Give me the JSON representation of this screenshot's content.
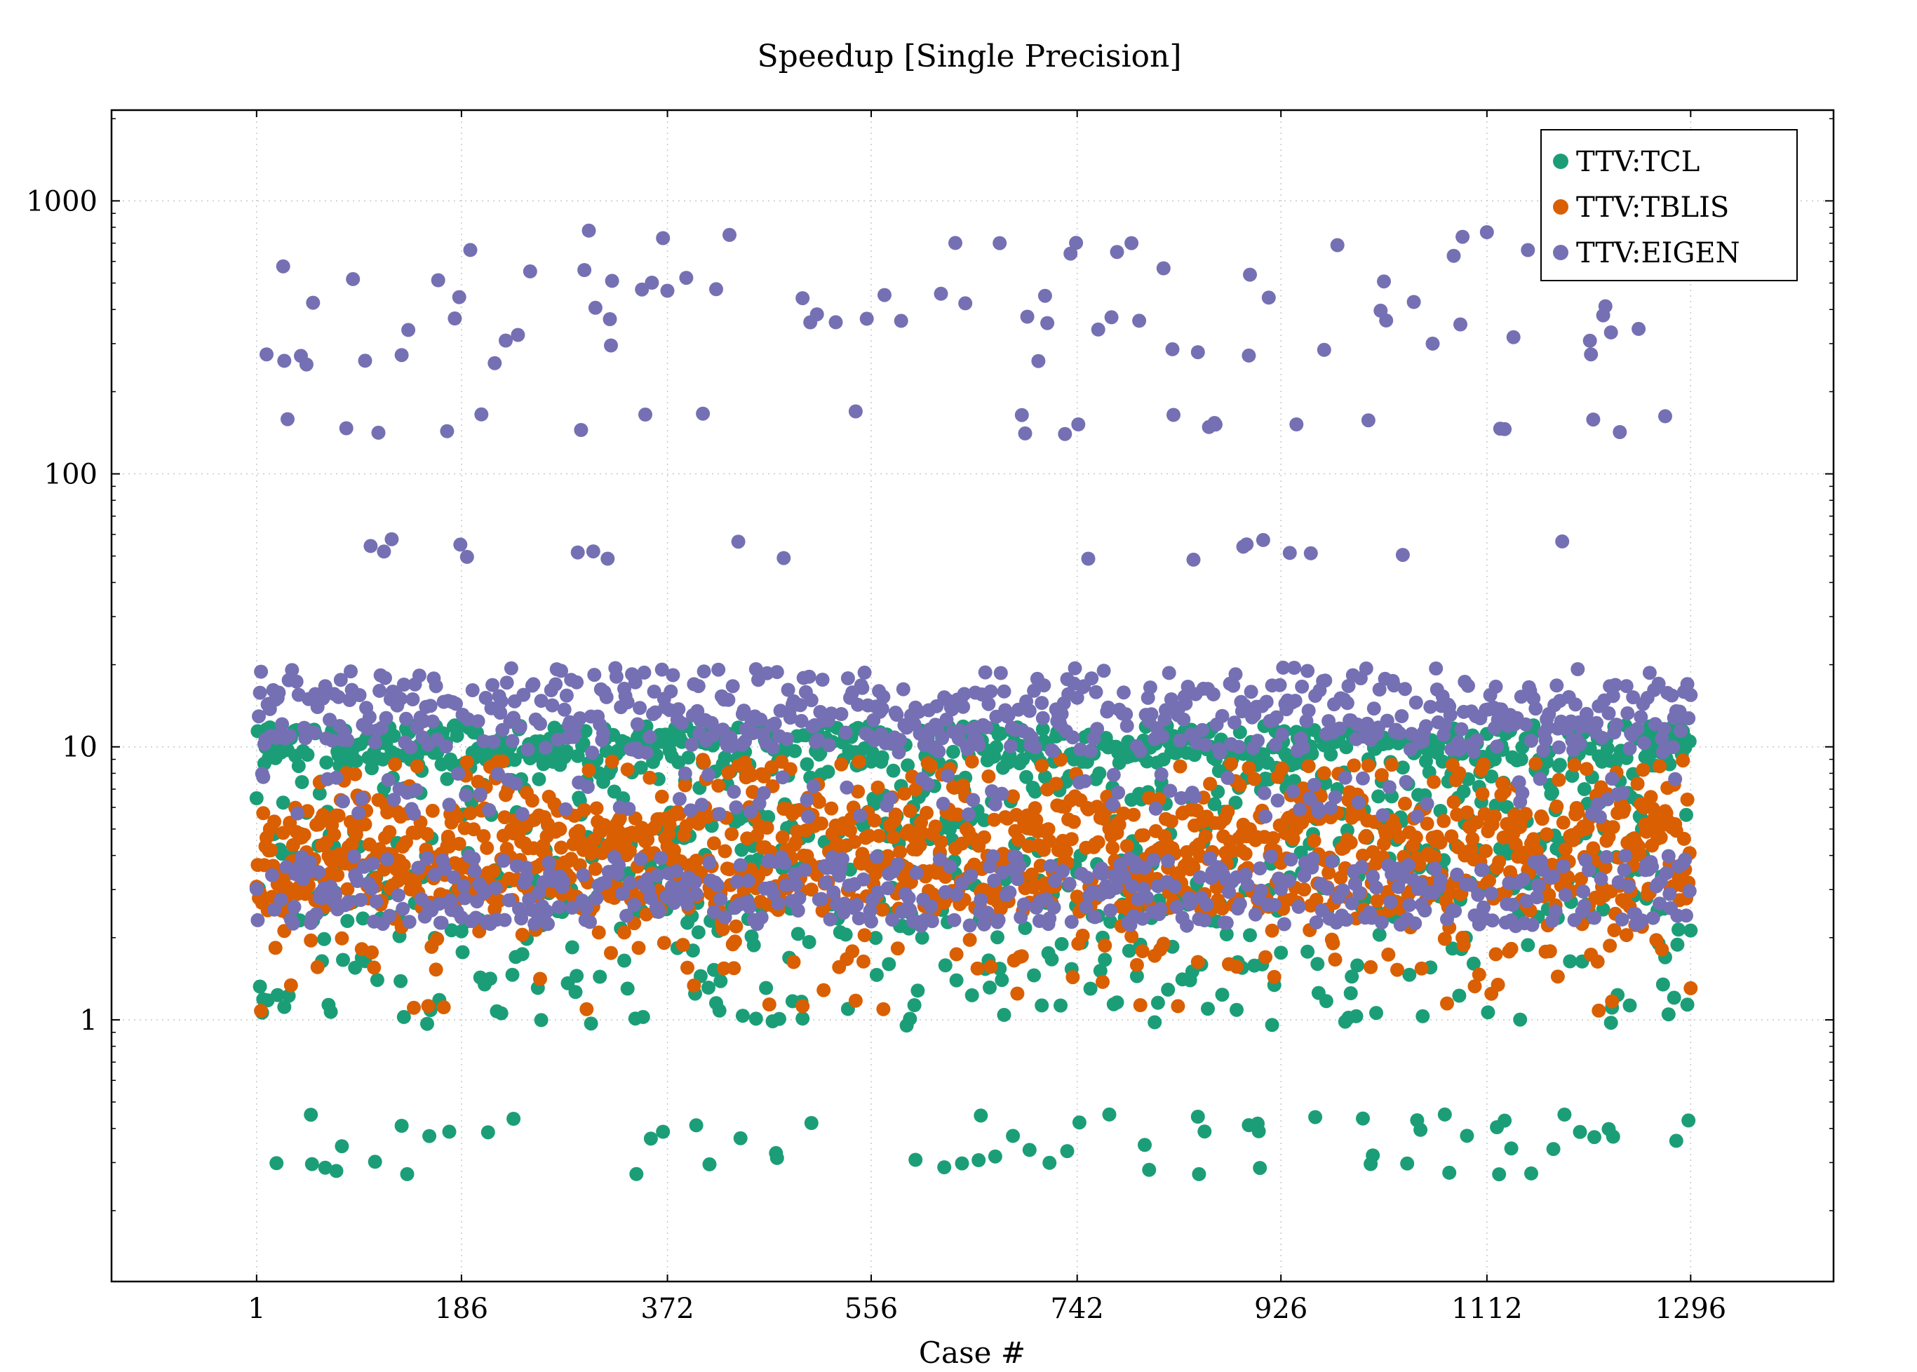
{
  "chart_data": {
    "type": "scatter",
    "title": "Speedup [Single Precision]",
    "xlabel": "Case #",
    "ylabel": "",
    "xlim": [
      -130,
      1425
    ],
    "ylim": [
      0.11,
      2150
    ],
    "yscale": "log",
    "xticks": [
      1,
      186,
      372,
      556,
      742,
      926,
      1112,
      1296
    ],
    "yticks": [
      1,
      10,
      100,
      1000
    ],
    "grid": true,
    "legend_position": "top-right",
    "n_cases": 1296,
    "series": [
      {
        "name": "TTV:TCL",
        "color": "#1b9e77",
        "bands": [
          {
            "share": 0.42,
            "low": 8.5,
            "high": 12.0
          },
          {
            "share": 0.28,
            "low": 2.2,
            "high": 5.5
          },
          {
            "share": 0.12,
            "low": 5.5,
            "high": 8.5
          },
          {
            "share": 0.13,
            "low": 0.95,
            "high": 2.2
          },
          {
            "share": 0.05,
            "low": 0.27,
            "high": 0.45
          }
        ]
      },
      {
        "name": "TTV:TBLIS",
        "color": "#d95f02",
        "bands": [
          {
            "share": 0.78,
            "low": 2.5,
            "high": 6.0
          },
          {
            "share": 0.12,
            "low": 6.0,
            "high": 9.0
          },
          {
            "share": 0.08,
            "low": 1.5,
            "high": 2.5
          },
          {
            "share": 0.02,
            "low": 1.0,
            "high": 1.5
          }
        ]
      },
      {
        "name": "TTV:EIGEN",
        "color": "#7570b3",
        "bands": [
          {
            "share": 0.42,
            "low": 9.5,
            "high": 17.0
          },
          {
            "share": 0.37,
            "low": 2.2,
            "high": 4.0
          },
          {
            "share": 0.08,
            "low": 5.5,
            "high": 8.0
          },
          {
            "share": 0.06,
            "low": 250,
            "high": 800
          },
          {
            "share": 0.015,
            "low": 140,
            "high": 170
          },
          {
            "share": 0.015,
            "low": 45,
            "high": 58
          },
          {
            "share": 0.04,
            "low": 17,
            "high": 19.5
          }
        ]
      }
    ]
  }
}
